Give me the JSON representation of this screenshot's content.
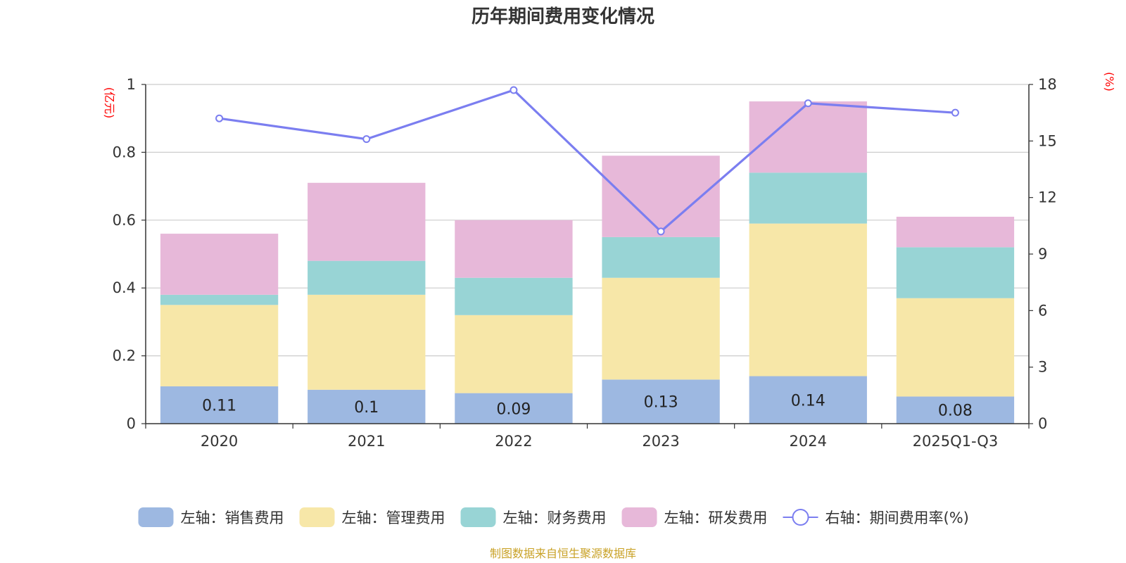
{
  "chart_data": {
    "type": "bar",
    "stacked": true,
    "title": "历年期间费用变化情况",
    "left_axis_unit": "(亿元)",
    "right_axis_unit": "(%)",
    "categories": [
      "2020",
      "2021",
      "2022",
      "2023",
      "2024",
      "2025Q1-Q3"
    ],
    "ylim_left": [
      0,
      1
    ],
    "yticks_left": [
      "0",
      "0.2",
      "0.4",
      "0.6",
      "0.8",
      "1"
    ],
    "ylim_right": [
      0,
      18
    ],
    "yticks_right": [
      "0",
      "3",
      "6",
      "9",
      "12",
      "15",
      "18"
    ],
    "grid": true,
    "legend_position": "bottom",
    "series": [
      {
        "name": "左轴：销售费用",
        "axis": "left",
        "kind": "bar",
        "color": "#9db8e1",
        "values": [
          0.11,
          0.1,
          0.09,
          0.13,
          0.14,
          0.08
        ],
        "labels": [
          "0.11",
          "0.1",
          "0.09",
          "0.13",
          "0.14",
          "0.08"
        ]
      },
      {
        "name": "左轴：管理费用",
        "axis": "left",
        "kind": "bar",
        "color": "#f7e7a8",
        "values": [
          0.24,
          0.28,
          0.23,
          0.3,
          0.45,
          0.29
        ]
      },
      {
        "name": "左轴：财务费用",
        "axis": "left",
        "kind": "bar",
        "color": "#98d4d5",
        "values": [
          0.03,
          0.1,
          0.11,
          0.12,
          0.15,
          0.15
        ]
      },
      {
        "name": "左轴：研发费用",
        "axis": "left",
        "kind": "bar",
        "color": "#e7b8d9",
        "values": [
          0.18,
          0.23,
          0.17,
          0.24,
          0.21,
          0.09
        ]
      },
      {
        "name": "右轴：期间费用率(%)",
        "axis": "right",
        "kind": "line",
        "color": "#7b7ef0",
        "values": [
          16.2,
          15.1,
          17.7,
          10.2,
          17.0,
          16.5
        ]
      }
    ]
  },
  "footer": {
    "source": "制图数据来自恒生聚源数据库"
  }
}
